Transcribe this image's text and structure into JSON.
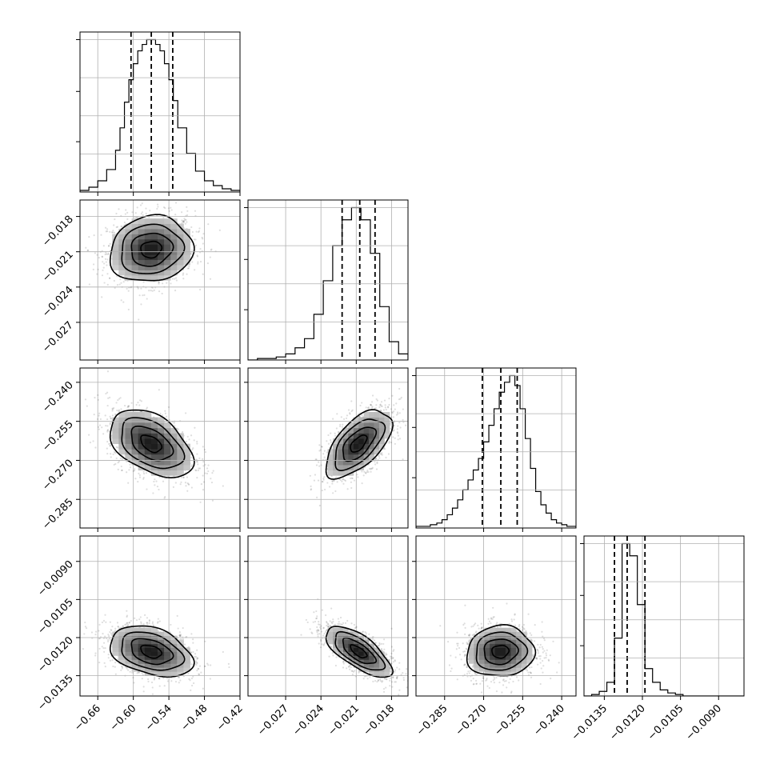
{
  "chart_data": {
    "type": "corner",
    "n_params": 4,
    "grid": true,
    "parameters": [
      {
        "range": [
          -0.69,
          -0.42
        ],
        "ticks": [
          -0.66,
          -0.6,
          -0.54,
          -0.48,
          -0.42
        ],
        "tick_labels": [
          "−0.66",
          "−0.60",
          "−0.54",
          "−0.48",
          "−0.42"
        ],
        "quantiles": [
          -0.6039,
          -0.5697,
          -0.5335
        ],
        "median": -0.57,
        "sigma": 0.035,
        "hist_bins": [
          -0.69,
          -0.675,
          -0.66,
          -0.645,
          -0.63,
          -0.6225,
          -0.615,
          -0.6075,
          -0.6,
          -0.5925,
          -0.585,
          -0.5775,
          -0.57,
          -0.5625,
          -0.555,
          -0.5475,
          -0.54,
          -0.5325,
          -0.525,
          -0.51,
          -0.495,
          -0.48,
          -0.465,
          -0.45,
          -0.435,
          -0.42
        ],
        "hist_counts": [
          1,
          3,
          7,
          14,
          26,
          40,
          56,
          70,
          80,
          88,
          92,
          95,
          95,
          92,
          88,
          80,
          70,
          57,
          40,
          24,
          13,
          7,
          4,
          2,
          1
        ]
      },
      {
        "range": [
          -0.0302,
          -0.0166
        ],
        "ticks": [
          -0.027,
          -0.024,
          -0.021,
          -0.018
        ],
        "tick_labels": [
          "−0.027",
          "−0.024",
          "−0.021",
          "−0.018"
        ],
        "quantiles": [
          -0.0222,
          -0.0207,
          -0.0194
        ],
        "median": -0.0208,
        "sigma": 0.0014,
        "hist_bins": [
          -0.0302,
          -0.0294,
          -0.0286,
          -0.0278,
          -0.027,
          -0.0262,
          -0.0254,
          -0.0246,
          -0.0238,
          -0.023,
          -0.0222,
          -0.0214,
          -0.0206,
          -0.0198,
          -0.019,
          -0.0182,
          -0.0174,
          -0.0166
        ],
        "hist_counts": [
          0,
          1,
          1,
          2,
          4,
          8,
          14,
          30,
          52,
          75,
          92,
          100,
          92,
          70,
          35,
          12,
          4
        ]
      },
      {
        "range": [
          -0.296,
          -0.2345
        ],
        "ticks": [
          -0.285,
          -0.27,
          -0.255,
          -0.24
        ],
        "tick_labels": [
          "−0.285",
          "−0.270",
          "−0.255",
          "−0.240"
        ],
        "quantiles": [
          -0.2705,
          -0.2634,
          -0.2571
        ],
        "median": -0.2636,
        "sigma": 0.0065,
        "hist_bins": [
          -0.296,
          -0.2935,
          -0.2905,
          -0.288,
          -0.286,
          -0.284,
          -0.282,
          -0.28,
          -0.278,
          -0.276,
          -0.274,
          -0.272,
          -0.27,
          -0.268,
          -0.266,
          -0.264,
          -0.262,
          -0.26,
          -0.258,
          -0.256,
          -0.254,
          -0.252,
          -0.25,
          -0.248,
          -0.246,
          -0.244,
          -0.242,
          -0.24,
          -0.238,
          -0.2345
        ],
        "hist_counts": [
          1,
          1,
          2,
          3,
          5,
          8,
          12,
          17,
          23,
          29,
          35,
          42,
          52,
          62,
          72,
          82,
          88,
          92,
          86,
          72,
          54,
          36,
          22,
          14,
          9,
          5,
          3,
          2,
          1
        ]
      },
      {
        "range": [
          -0.0143,
          -0.008
        ],
        "ticks": [
          -0.0135,
          -0.012,
          -0.0105,
          -0.009
        ],
        "tick_labels": [
          "−0.0135",
          "−0.0120",
          "−0.0105",
          "−0.0090"
        ],
        "quantiles": [
          -0.0131,
          -0.0126,
          -0.0119
        ],
        "median": -0.01255,
        "sigma": 0.0005,
        "hist_bins": [
          -0.0143,
          -0.014,
          -0.0137,
          -0.0134,
          -0.0131,
          -0.0128,
          -0.0125,
          -0.0122,
          -0.0119,
          -0.0116,
          -0.0113,
          -0.011,
          -0.0107,
          -0.0104,
          -0.0101,
          -0.0098,
          -0.0095,
          -0.0092,
          -0.0089,
          -0.0086,
          -0.0083,
          -0.008
        ],
        "hist_counts": [
          0,
          1,
          3,
          9,
          38,
          100,
          92,
          60,
          18,
          9,
          4,
          2,
          1,
          0,
          0,
          0,
          0,
          0,
          0,
          0,
          0
        ]
      }
    ],
    "correlations": {
      "1,0": 0.1,
      "2,0": -0.45,
      "2,1": 0.6,
      "3,0": -0.35,
      "3,1": -0.7,
      "3,2": 0.05
    }
  }
}
